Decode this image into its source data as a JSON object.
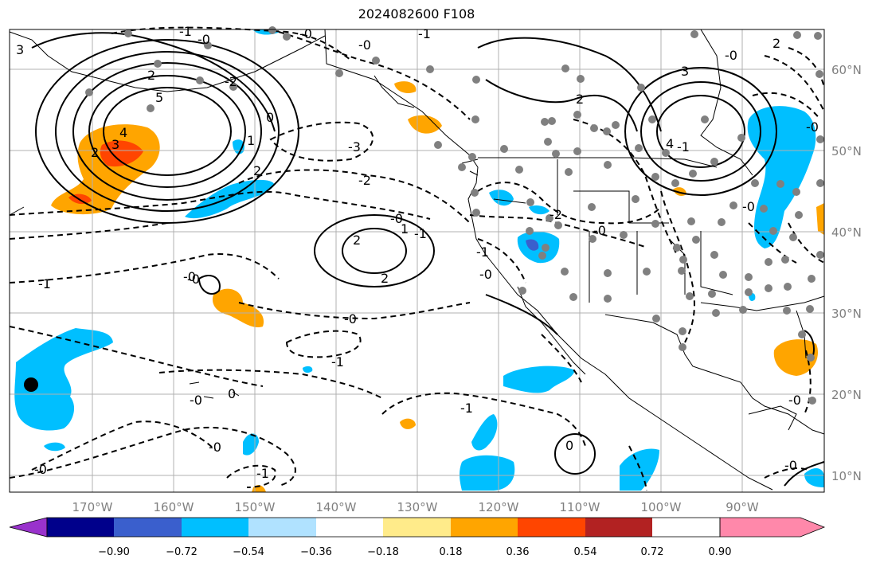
{
  "title": "2024082600 F108",
  "lon_labels": [
    "170°W",
    "160°W",
    "150°W",
    "140°W",
    "130°W",
    "120°W",
    "110°W",
    "100°W",
    "90°W"
  ],
  "lat_labels": [
    "60°N",
    "50°N",
    "40°N",
    "30°N",
    "20°N",
    "10°N"
  ],
  "colorbar": {
    "colors": [
      "#9932cc",
      "#00008b",
      "#3a5fcd",
      "#00bfff",
      "#b0e2ff",
      "#ffffff",
      "#ffeb8a",
      "#ffa500",
      "#ff4500",
      "#b22222",
      "#ff88aa"
    ],
    "tick_labels": [
      "−0.90",
      "−0.72",
      "−0.54",
      "−0.36",
      "−0.18",
      "0.18",
      "0.36",
      "0.54",
      "0.72",
      "0.90"
    ]
  },
  "contour_labels": [
    "3",
    "2",
    "-0",
    "-1",
    "5",
    "4",
    "3",
    "2",
    "-2",
    "-0",
    "-1",
    "0",
    "1",
    "-0",
    "-3",
    "-2",
    "2",
    "-1",
    "-0",
    "2",
    "2",
    "1",
    "-0",
    "-1",
    "-2",
    "-0",
    "3",
    "2",
    "-0",
    "-0",
    "2",
    "-1",
    "-0",
    "-0",
    "0",
    "-0",
    "-0",
    "-1",
    "-1",
    "-0",
    "-1",
    "-1",
    "-0",
    "-0",
    "-0",
    "0",
    "-0",
    "4"
  ],
  "colors": {
    "shade_orange": "#ffa500",
    "shade_red": "#ff4500",
    "shade_blue": "#00bfff",
    "shade_purple": "#3a5fcd",
    "station_dot": "#808080",
    "grid": "#b0b0b0"
  }
}
